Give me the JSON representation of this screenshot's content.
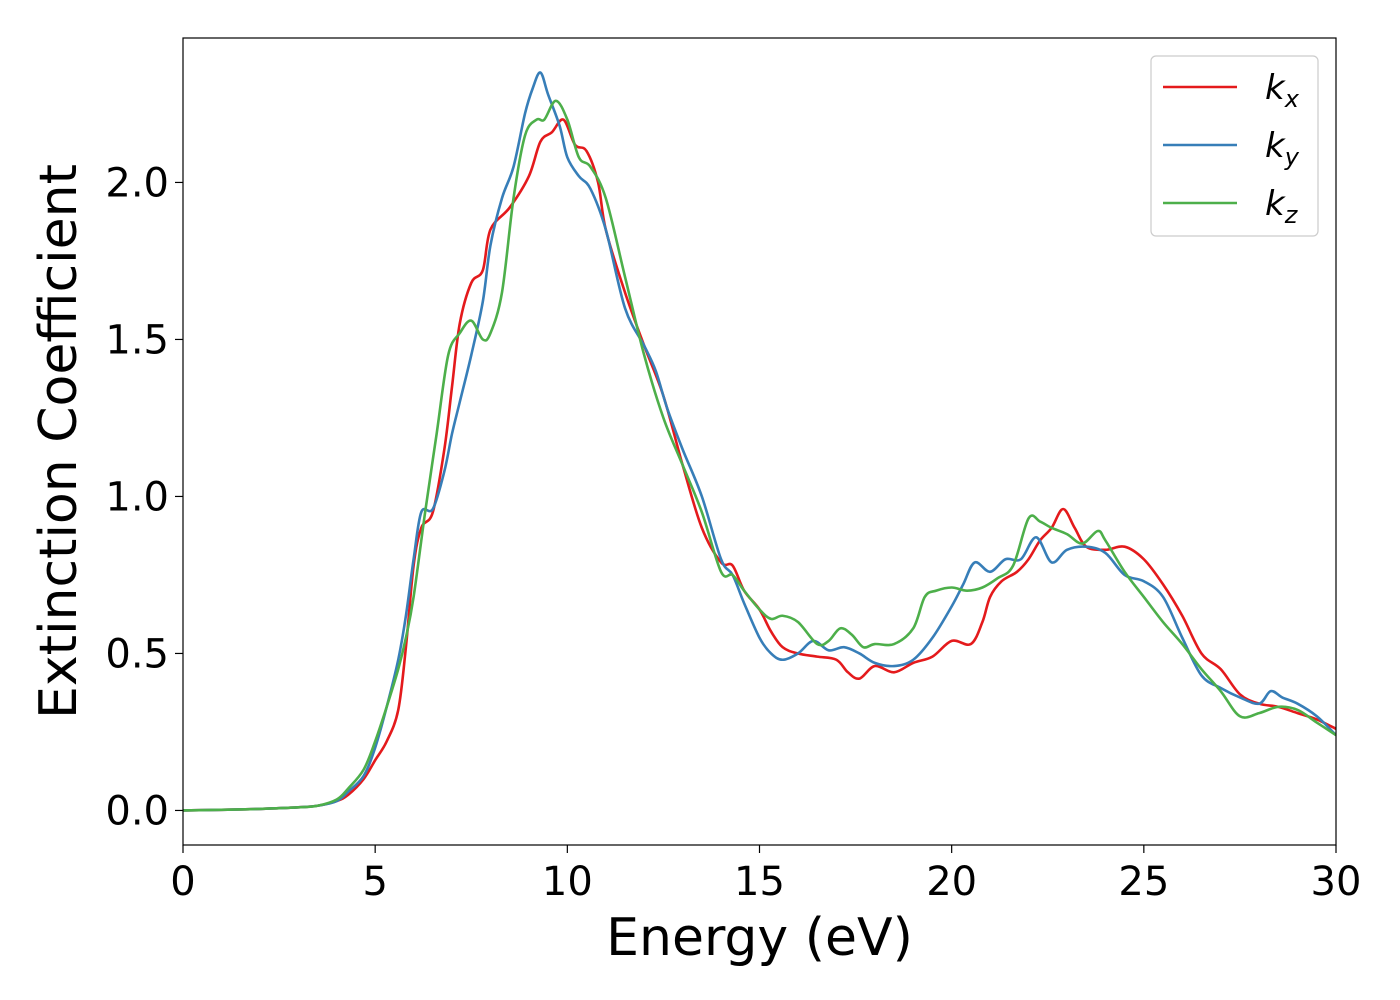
{
  "chart_data": {
    "type": "line",
    "xlabel": "Energy (eV)",
    "ylabel": "Extinction Coefficient",
    "xlim": [
      0,
      30
    ],
    "ylim": [
      -0.11,
      2.46
    ],
    "xticks": [
      0,
      5,
      10,
      15,
      20,
      25,
      30
    ],
    "yticks": [
      0.0,
      0.5,
      1.0,
      1.5,
      2.0
    ],
    "xtick_labels": [
      "0",
      "5",
      "10",
      "15",
      "20",
      "25",
      "30"
    ],
    "ytick_labels": [
      "0.0",
      "0.5",
      "1.0",
      "1.5",
      "2.0"
    ],
    "grid": false,
    "legend_position": "top-right",
    "series": [
      {
        "name": "k",
        "subscript": "x",
        "color": "#e41a1c",
        "x": [
          0,
          1,
          2,
          3,
          3.5,
          4,
          4.3,
          4.7,
          5,
          5.3,
          5.6,
          5.8,
          6.0,
          6.2,
          6.5,
          6.8,
          7.0,
          7.2,
          7.5,
          7.8,
          8.0,
          8.5,
          9.0,
          9.3,
          9.6,
          9.9,
          10.2,
          10.5,
          10.8,
          11.0,
          11.5,
          12.0,
          12.5,
          13.0,
          13.5,
          14.0,
          14.3,
          14.6,
          15.0,
          15.3,
          15.6,
          16.0,
          16.5,
          17.0,
          17.3,
          17.6,
          18.0,
          18.5,
          19.0,
          19.5,
          20.0,
          20.5,
          20.8,
          21.0,
          21.3,
          21.7,
          22.0,
          22.3,
          22.6,
          22.9,
          23.2,
          23.5,
          24.0,
          24.5,
          25.0,
          25.5,
          26.0,
          26.5,
          27.0,
          27.5,
          28.0,
          28.5,
          29.0,
          29.5,
          30.0
        ],
        "values": [
          0.0,
          0.002,
          0.005,
          0.01,
          0.015,
          0.03,
          0.05,
          0.1,
          0.16,
          0.22,
          0.32,
          0.52,
          0.78,
          0.9,
          0.95,
          1.15,
          1.35,
          1.55,
          1.68,
          1.72,
          1.85,
          1.92,
          2.02,
          2.13,
          2.16,
          2.2,
          2.12,
          2.1,
          2.0,
          1.85,
          1.65,
          1.48,
          1.32,
          1.1,
          0.9,
          0.79,
          0.78,
          0.7,
          0.64,
          0.57,
          0.52,
          0.5,
          0.49,
          0.48,
          0.44,
          0.42,
          0.46,
          0.44,
          0.47,
          0.49,
          0.54,
          0.53,
          0.6,
          0.68,
          0.73,
          0.76,
          0.8,
          0.86,
          0.9,
          0.96,
          0.9,
          0.84,
          0.83,
          0.84,
          0.8,
          0.72,
          0.62,
          0.5,
          0.45,
          0.37,
          0.34,
          0.33,
          0.31,
          0.29,
          0.26
        ]
      },
      {
        "name": "k",
        "subscript": "y",
        "color": "#377eb8",
        "x": [
          0,
          1,
          2,
          3,
          3.5,
          4,
          4.3,
          4.7,
          5,
          5.3,
          5.6,
          5.8,
          6.0,
          6.2,
          6.5,
          6.8,
          7.0,
          7.2,
          7.5,
          7.8,
          8.0,
          8.3,
          8.6,
          8.9,
          9.1,
          9.3,
          9.5,
          9.8,
          10.0,
          10.3,
          10.6,
          11.0,
          11.5,
          12.0,
          12.3,
          12.6,
          13.0,
          13.5,
          14.0,
          14.3,
          14.6,
          15.0,
          15.3,
          15.6,
          16.0,
          16.4,
          16.8,
          17.2,
          17.6,
          18.0,
          18.5,
          19.0,
          19.5,
          20.0,
          20.3,
          20.6,
          21.0,
          21.4,
          21.8,
          22.2,
          22.6,
          23.0,
          23.5,
          24.0,
          24.5,
          25.0,
          25.5,
          26.0,
          26.5,
          27.0,
          27.5,
          28.0,
          28.3,
          28.6,
          29.0,
          29.5,
          30.0
        ],
        "values": [
          0.0,
          0.002,
          0.005,
          0.01,
          0.015,
          0.03,
          0.06,
          0.11,
          0.2,
          0.33,
          0.48,
          0.62,
          0.8,
          0.95,
          0.96,
          1.08,
          1.2,
          1.3,
          1.45,
          1.62,
          1.8,
          1.95,
          2.05,
          2.22,
          2.3,
          2.35,
          2.28,
          2.18,
          2.08,
          2.02,
          1.98,
          1.85,
          1.6,
          1.48,
          1.4,
          1.28,
          1.15,
          1.0,
          0.8,
          0.75,
          0.66,
          0.55,
          0.5,
          0.48,
          0.5,
          0.54,
          0.51,
          0.52,
          0.5,
          0.47,
          0.46,
          0.48,
          0.55,
          0.65,
          0.72,
          0.79,
          0.76,
          0.8,
          0.8,
          0.87,
          0.79,
          0.83,
          0.84,
          0.82,
          0.75,
          0.73,
          0.68,
          0.55,
          0.43,
          0.39,
          0.36,
          0.34,
          0.38,
          0.36,
          0.34,
          0.3,
          0.24
        ]
      },
      {
        "name": "k",
        "subscript": "z",
        "color": "#4daf4a",
        "x": [
          0,
          1,
          2,
          3,
          3.5,
          4,
          4.3,
          4.7,
          5,
          5.3,
          5.6,
          5.8,
          6.0,
          6.3,
          6.6,
          6.9,
          7.2,
          7.5,
          7.8,
          8.0,
          8.3,
          8.6,
          8.9,
          9.2,
          9.4,
          9.7,
          10.0,
          10.3,
          10.6,
          11.0,
          11.5,
          12.0,
          12.5,
          13.0,
          13.5,
          14.0,
          14.3,
          14.6,
          15.0,
          15.3,
          15.6,
          16.0,
          16.5,
          16.8,
          17.1,
          17.4,
          17.7,
          18.0,
          18.5,
          19.0,
          19.3,
          19.6,
          20.0,
          20.4,
          20.8,
          21.2,
          21.6,
          22.0,
          22.3,
          22.6,
          23.0,
          23.4,
          23.8,
          24.0,
          24.5,
          25.0,
          25.5,
          26.0,
          26.5,
          27.0,
          27.5,
          28.0,
          28.5,
          29.0,
          29.5,
          30.0
        ],
        "values": [
          0.0,
          0.002,
          0.005,
          0.01,
          0.015,
          0.035,
          0.07,
          0.13,
          0.22,
          0.33,
          0.45,
          0.55,
          0.68,
          0.95,
          1.2,
          1.45,
          1.52,
          1.56,
          1.5,
          1.52,
          1.65,
          1.95,
          2.15,
          2.2,
          2.2,
          2.26,
          2.2,
          2.08,
          2.05,
          1.95,
          1.7,
          1.45,
          1.25,
          1.1,
          0.95,
          0.76,
          0.75,
          0.7,
          0.64,
          0.61,
          0.62,
          0.6,
          0.53,
          0.54,
          0.58,
          0.56,
          0.52,
          0.53,
          0.53,
          0.58,
          0.68,
          0.7,
          0.71,
          0.7,
          0.71,
          0.74,
          0.78,
          0.93,
          0.92,
          0.9,
          0.88,
          0.85,
          0.89,
          0.86,
          0.76,
          0.68,
          0.6,
          0.53,
          0.45,
          0.38,
          0.3,
          0.31,
          0.33,
          0.32,
          0.28,
          0.24
        ]
      }
    ]
  }
}
